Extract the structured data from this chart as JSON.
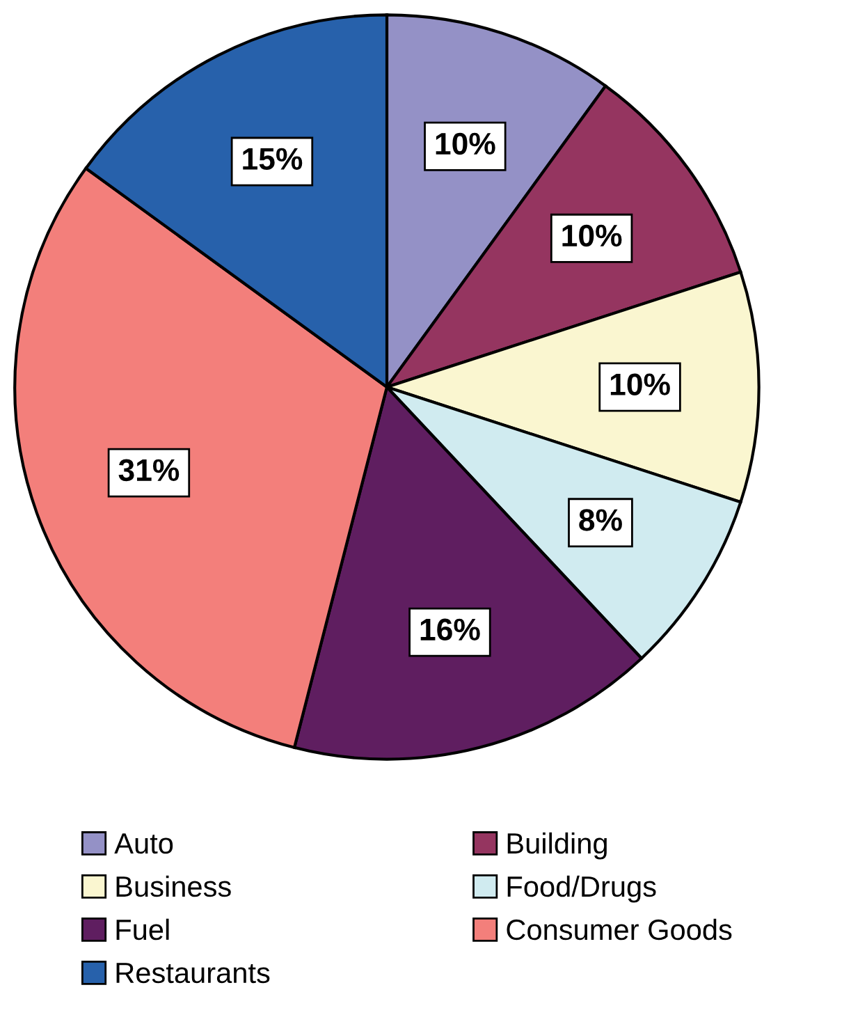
{
  "chart_data": {
    "type": "pie",
    "categories": [
      "Auto",
      "Building",
      "Business",
      "Food/Drugs",
      "Fuel",
      "Consumer Goods",
      "Restaurants"
    ],
    "values": [
      10,
      10,
      10,
      8,
      16,
      31,
      15
    ],
    "colors": [
      "#9491c6",
      "#953560",
      "#faf6d0",
      "#d0ebf0",
      "#5f1e60",
      "#f37f7b",
      "#2761ab"
    ],
    "value_labels": [
      "10%",
      "10%",
      "10%",
      "8%",
      "16%",
      "31%",
      "15%"
    ],
    "legend": "bottom"
  }
}
